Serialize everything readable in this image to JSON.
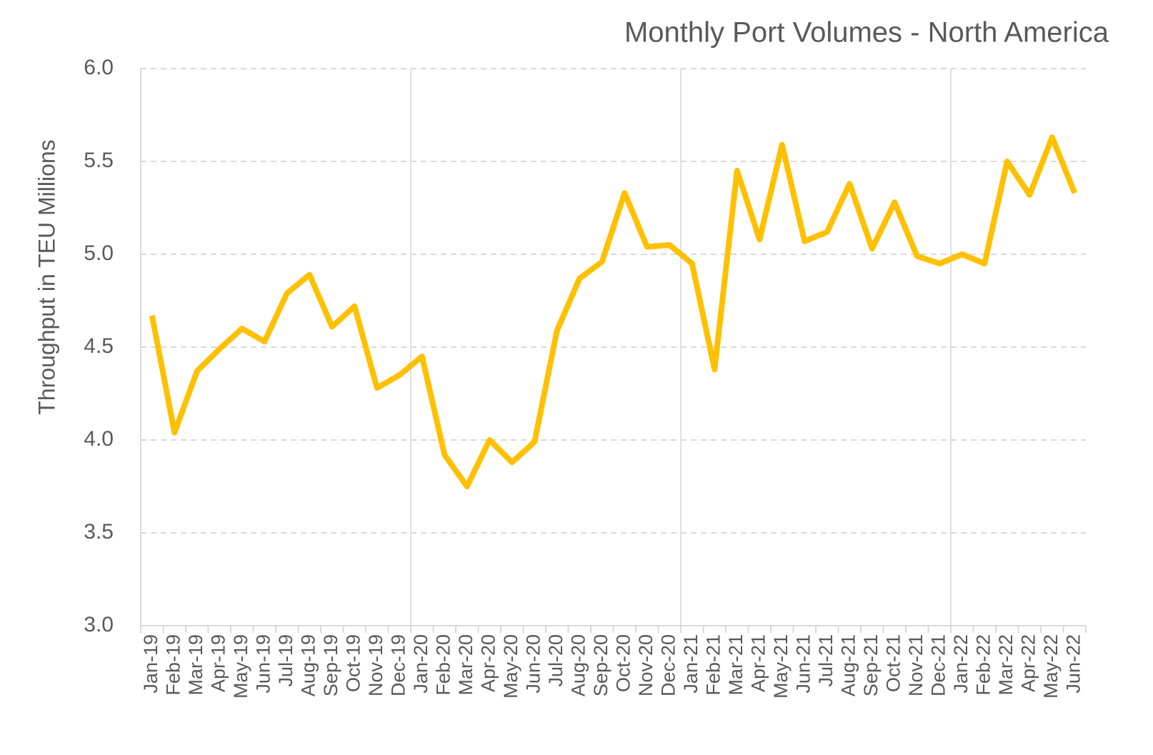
{
  "chart_data": {
    "type": "line",
    "title": "Monthly Port Volumes - North America",
    "y_label": "Throughput in TEU Millions",
    "categories": [
      "Jan-19",
      "Feb-19",
      "Mar-19",
      "Apr-19",
      "May-19",
      "Jun-19",
      "Jul-19",
      "Aug-19",
      "Sep-19",
      "Oct-19",
      "Nov-19",
      "Dec-19",
      "Jan-20",
      "Feb-20",
      "Mar-20",
      "Apr-20",
      "May-20",
      "Jun-20",
      "Jul-20",
      "Aug-20",
      "Sep-20",
      "Oct-20",
      "Nov-20",
      "Dec-20",
      "Jan-21",
      "Feb-21",
      "Mar-21",
      "Apr-21",
      "May-21",
      "Jun-21",
      "Jul-21",
      "Aug-21",
      "Sep-21",
      "Oct-21",
      "Nov-21",
      "Dec-21",
      "Jan-22",
      "Feb-22",
      "Mar-22",
      "Apr-22",
      "May-22",
      "Jun-22"
    ],
    "series": [
      {
        "name": "Throughput",
        "color": "#FFC000",
        "values": [
          4.67,
          4.04,
          4.37,
          4.49,
          4.6,
          4.53,
          4.79,
          4.89,
          4.61,
          4.72,
          4.28,
          4.35,
          4.45,
          3.92,
          3.75,
          4.0,
          3.88,
          3.99,
          4.59,
          4.87,
          4.96,
          5.33,
          5.04,
          5.05,
          4.95,
          4.38,
          5.45,
          5.08,
          5.59,
          5.07,
          5.12,
          5.38,
          5.03,
          5.28,
          4.99,
          4.95,
          5.0,
          4.95,
          5.5,
          5.32,
          5.63,
          5.33
        ]
      }
    ],
    "ylim": [
      3.0,
      6.0
    ],
    "yticks": [
      {
        "value": 3,
        "label": "3.0"
      },
      3.5,
      {
        "value": 4,
        "label": "4.0"
      },
      4.5,
      {
        "value": 5,
        "label": "5.0"
      },
      5.5,
      {
        "value": 6,
        "label": "6.0"
      }
    ],
    "grid": true
  }
}
